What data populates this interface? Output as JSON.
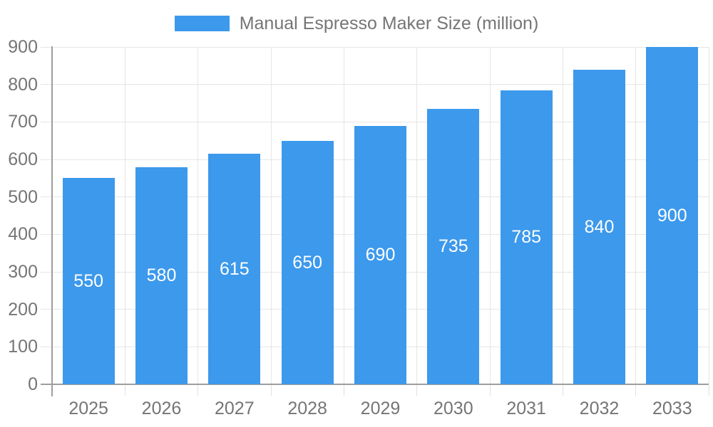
{
  "legend": {
    "label": "Manual Espresso Maker Size (million)"
  },
  "colors": {
    "bar": "#3C99EC",
    "grid": "#E6E6E6",
    "tick": "#E0E0E0",
    "axis": "#9E9E9E",
    "text": "#757575",
    "bar_label": "#FFFFFF",
    "background": "#FFFFFF"
  },
  "chart_data": {
    "type": "bar",
    "title": "Manual Espresso Maker Size (million)",
    "categories": [
      "2025",
      "2026",
      "2027",
      "2028",
      "2029",
      "2030",
      "2031",
      "2032",
      "2033"
    ],
    "series": [
      {
        "name": "Manual Espresso Maker Size (million)",
        "values": [
          550,
          580,
          615,
          650,
          690,
          735,
          785,
          840,
          900
        ]
      }
    ],
    "value_labels": [
      "550",
      "580",
      "615",
      "650",
      "690",
      "735",
      "785",
      "840",
      "900"
    ],
    "xlabel": "",
    "ylabel": "",
    "ylim": [
      0,
      900
    ],
    "ytick_interval": 100,
    "yticks": [
      0,
      100,
      200,
      300,
      400,
      500,
      600,
      700,
      800,
      900
    ],
    "grid": true,
    "vertical_grid": "category-boundaries",
    "legend_position": "top",
    "value_label_placement": "inside-center"
  }
}
